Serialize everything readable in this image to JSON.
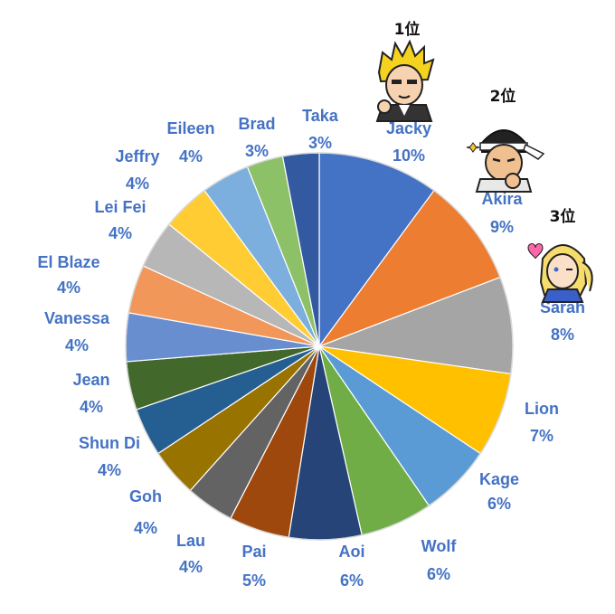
{
  "chart_data": {
    "type": "pie",
    "label_color": "#4472c4",
    "slices": [
      {
        "name": "Jacky",
        "pct_label": "10%",
        "value": 10,
        "color": "#4472c4"
      },
      {
        "name": "Akira",
        "pct_label": "9%",
        "value": 9,
        "color": "#ed7d31"
      },
      {
        "name": "Sarah",
        "pct_label": "8%",
        "value": 8,
        "color": "#a5a5a5"
      },
      {
        "name": "Lion",
        "pct_label": "7%",
        "value": 7,
        "color": "#ffc000"
      },
      {
        "name": "Kage",
        "pct_label": "6%",
        "value": 6,
        "color": "#5b9bd5"
      },
      {
        "name": "Wolf",
        "pct_label": "6%",
        "value": 6,
        "color": "#70ad47"
      },
      {
        "name": "Aoi",
        "pct_label": "6%",
        "value": 6,
        "color": "#264478"
      },
      {
        "name": "Pai",
        "pct_label": "5%",
        "value": 5,
        "color": "#9e480e"
      },
      {
        "name": "Lau",
        "pct_label": "4%",
        "value": 4,
        "color": "#636363"
      },
      {
        "name": "Goh",
        "pct_label": "4%",
        "value": 4,
        "color": "#997300"
      },
      {
        "name": "Shun Di",
        "pct_label": "4%",
        "value": 4,
        "color": "#255e91"
      },
      {
        "name": "Jean",
        "pct_label": "4%",
        "value": 4,
        "color": "#43682b"
      },
      {
        "name": "Vanessa",
        "pct_label": "4%",
        "value": 4,
        "color": "#698ed0"
      },
      {
        "name": "El Blaze",
        "pct_label": "4%",
        "value": 4,
        "color": "#f1975a"
      },
      {
        "name": "Lei Fei",
        "pct_label": "4%",
        "value": 4,
        "color": "#b7b7b7"
      },
      {
        "name": "Jeffry",
        "pct_label": "4%",
        "value": 4,
        "color": "#ffcd33"
      },
      {
        "name": "Eileen",
        "pct_label": "4%",
        "value": 4,
        "color": "#7cafdd"
      },
      {
        "name": "Brad",
        "pct_label": "3%",
        "value": 3,
        "color": "#8cc168"
      },
      {
        "name": "Taka",
        "pct_label": "3%",
        "value": 3,
        "color": "#335aa1"
      }
    ],
    "rank_badges": [
      {
        "text": "1位",
        "character": "Jacky"
      },
      {
        "text": "2位",
        "character": "Akira"
      },
      {
        "text": "3位",
        "character": "Sarah"
      }
    ]
  }
}
